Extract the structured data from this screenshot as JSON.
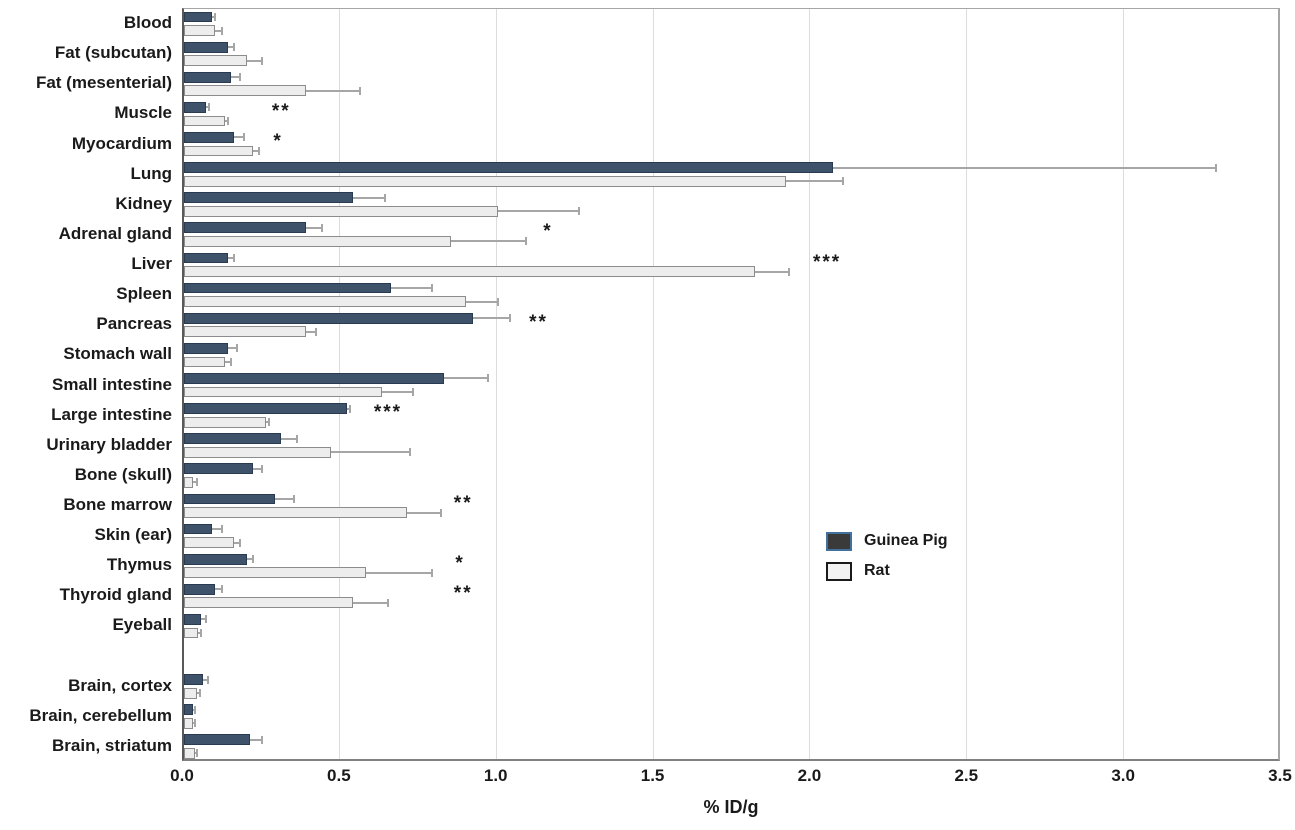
{
  "chart_data": {
    "type": "bar",
    "orientation": "horizontal",
    "title": "",
    "xlabel": "% ID/g",
    "xlim": [
      0,
      3.5
    ],
    "xtick_labels": [
      "0.0",
      "0.5",
      "1.0",
      "1.5",
      "2.0",
      "2.5",
      "3.0",
      "3.5"
    ],
    "grid": "vertical-light",
    "legend_position": "center-right",
    "categories": [
      "Blood",
      "Fat (subcutan)",
      "Fat (mesenterial)",
      "Muscle",
      "Myocardium",
      "Lung",
      "Kidney",
      "Adrenal gland",
      "Liver",
      "Spleen",
      "Pancreas",
      "Stomach wall",
      "Small intestine",
      "Large intestine",
      "Urinary bladder",
      "Bone (skull)",
      "Bone marrow",
      "Skin (ear)",
      "Thymus",
      "Thyroid gland",
      "Eyeball",
      "",
      "Brain, cortex",
      "Brain, cerebellum",
      "Brain, striatum"
    ],
    "series": [
      {
        "name": "Guinea Pig",
        "bar_fill": "#3e5269",
        "bar_border": "#2a3a50",
        "values": [
          0.09,
          0.14,
          0.15,
          0.07,
          0.16,
          2.07,
          0.54,
          0.39,
          0.14,
          0.66,
          0.92,
          0.14,
          0.83,
          0.52,
          0.31,
          0.22,
          0.29,
          0.09,
          0.2,
          0.1,
          0.055,
          null,
          0.06,
          0.03,
          0.21
        ],
        "errors": [
          0.01,
          0.02,
          0.03,
          0.01,
          0.03,
          1.22,
          0.1,
          0.05,
          0.02,
          0.13,
          0.12,
          0.03,
          0.14,
          0.01,
          0.05,
          0.03,
          0.06,
          0.03,
          0.02,
          0.02,
          0.015,
          null,
          0.015,
          0.005,
          0.04
        ]
      },
      {
        "name": "Rat",
        "bar_fill": "#ededed",
        "bar_border": "#8c8c8c",
        "values": [
          0.1,
          0.2,
          0.39,
          0.13,
          0.22,
          1.92,
          1.0,
          0.85,
          1.82,
          0.9,
          0.39,
          0.13,
          0.63,
          0.26,
          0.47,
          0.03,
          0.71,
          0.16,
          0.58,
          0.54,
          0.045,
          null,
          0.04,
          0.03,
          0.035
        ],
        "errors": [
          0.02,
          0.05,
          0.17,
          0.01,
          0.02,
          0.18,
          0.26,
          0.24,
          0.11,
          0.1,
          0.03,
          0.02,
          0.1,
          0.01,
          0.25,
          0.01,
          0.11,
          0.02,
          0.21,
          0.11,
          0.01,
          null,
          0.01,
          0.005,
          0.005
        ]
      }
    ],
    "significance_markers": [
      {
        "category": "Muscle",
        "label": "**",
        "x": 0.31
      },
      {
        "category": "Myocardium",
        "label": "*",
        "x": 0.3
      },
      {
        "category": "Adrenal gland",
        "label": "*",
        "x": 1.16
      },
      {
        "category": "Liver",
        "label": "***",
        "x": 2.05
      },
      {
        "category": "Pancreas",
        "label": "**",
        "x": 1.13
      },
      {
        "category": "Large intestine",
        "label": "***",
        "x": 0.65
      },
      {
        "category": "Bone marrow",
        "label": "**",
        "x": 0.89
      },
      {
        "category": "Thymus",
        "label": "*",
        "x": 0.88
      },
      {
        "category": "Thyroid gland",
        "label": "**",
        "x": 0.89
      }
    ],
    "legend": {
      "items": [
        {
          "label": "Guinea Pig",
          "fill": "#3a3a3a",
          "border": "#41719c"
        },
        {
          "label": "Rat",
          "fill": "#f2f2f2",
          "border": "#1a1a1a"
        }
      ]
    },
    "colors": {
      "error_bar": "#a6a6a6",
      "gridline": "#dcdcdc",
      "axis_left": "#595959",
      "axis_bottom": "#808080",
      "text": "#1a1a1a"
    }
  }
}
